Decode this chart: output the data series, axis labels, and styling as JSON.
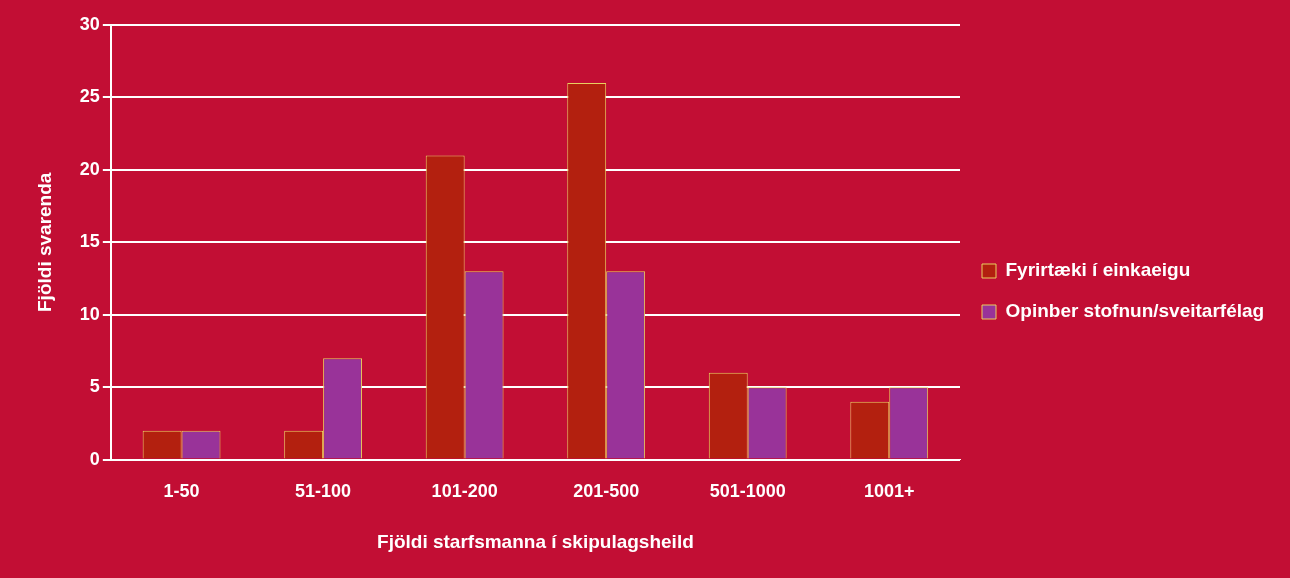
{
  "chart_data": {
    "type": "bar",
    "xlabel": "Fjöldi starfsmanna í skipulagsheild",
    "ylabel": "Fjöldi svarenda",
    "categories": [
      "1-50",
      "51-100",
      "101-200",
      "201-500",
      "501-1000",
      "1001+"
    ],
    "series": [
      {
        "name": "Fyrirtæki í einkaeigu",
        "color": "#b3200f",
        "values": [
          2,
          2,
          21,
          26,
          6,
          4
        ]
      },
      {
        "name": "Opinber stofnun/sveitarfélag",
        "color": "#993399",
        "values": [
          2,
          7,
          13,
          13,
          5,
          5
        ]
      }
    ],
    "ylim": [
      0,
      30
    ],
    "yticks": [
      0,
      5,
      10,
      15,
      20,
      25,
      30
    ],
    "grid": "y",
    "legend": "right"
  }
}
